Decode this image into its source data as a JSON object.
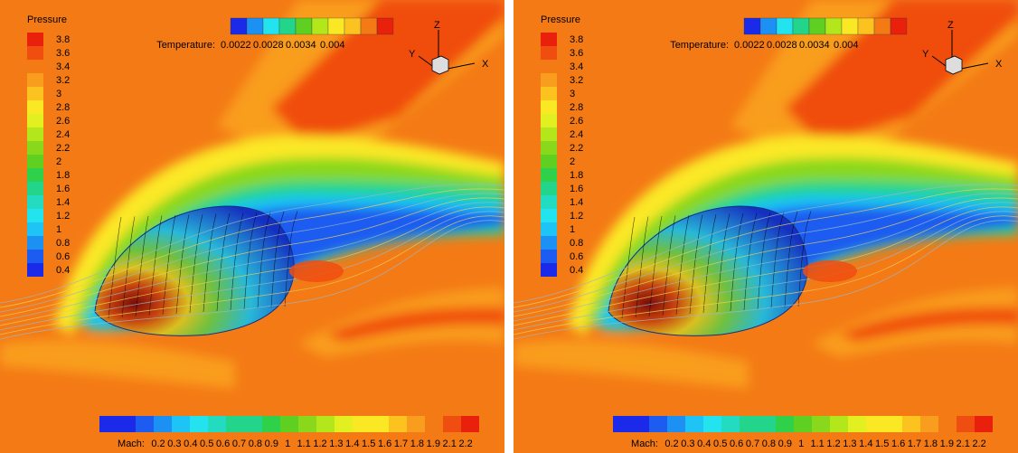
{
  "panels": [
    {
      "pressure_legend": {
        "title": "Pressure",
        "labels": [
          "3.8",
          "3.6",
          "3.4",
          "3.2",
          "3",
          "2.8",
          "2.6",
          "2.4",
          "2.2",
          "2",
          "1.8",
          "1.6",
          "1.4",
          "1.2",
          "1",
          "0.8",
          "0.6",
          "0.4"
        ]
      },
      "temperature_legend": {
        "title": "Temperature:",
        "labels": [
          "0.0022",
          "0.0028",
          "0.0034",
          "0.004"
        ]
      },
      "mach_legend": {
        "title": "Mach:",
        "labels": [
          "0.2",
          "0.3",
          "0.4",
          "0.5",
          "0.6",
          "0.7",
          "0.8",
          "0.9",
          "1",
          "1.1",
          "1.2",
          "1.3",
          "1.4",
          "1.5",
          "1.6",
          "1.7",
          "1.8",
          "1.9",
          "2.1",
          "2.2"
        ]
      },
      "axes": {
        "x": "X",
        "y": "Y",
        "z": "Z"
      }
    },
    {
      "pressure_legend": {
        "title": "Pressure",
        "labels": [
          "3.8",
          "3.6",
          "3.4",
          "3.2",
          "3",
          "2.8",
          "2.6",
          "2.4",
          "2.2",
          "2",
          "1.8",
          "1.6",
          "1.4",
          "1.2",
          "1",
          "0.8",
          "0.6",
          "0.4"
        ]
      },
      "temperature_legend": {
        "title": "Temperature:",
        "labels": [
          "0.0022",
          "0.0028",
          "0.0034",
          "0.004"
        ]
      },
      "mach_legend": {
        "title": "Mach:",
        "labels": [
          "0.2",
          "0.3",
          "0.4",
          "0.5",
          "0.6",
          "0.7",
          "0.8",
          "0.9",
          "1",
          "1.1",
          "1.2",
          "1.3",
          "1.4",
          "1.5",
          "1.6",
          "1.7",
          "1.8",
          "1.9",
          "2.1",
          "2.2"
        ]
      },
      "axes": {
        "x": "X",
        "y": "Y",
        "z": "Z"
      }
    }
  ]
}
